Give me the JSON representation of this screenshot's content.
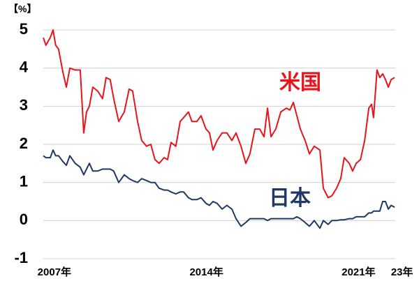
{
  "chart_data": {
    "type": "line",
    "y_unit": "【%】",
    "x": [
      2006.49,
      2006.61,
      2006.81,
      2006.94,
      2007.06,
      2007.19,
      2007.39,
      2007.55,
      2007.71,
      2007.96,
      2008.19,
      2008.35,
      2008.48,
      2008.61,
      2008.77,
      2008.99,
      2009.22,
      2009.38,
      2009.57,
      2009.73,
      2009.96,
      2010.22,
      2010.44,
      2010.6,
      2010.83,
      2011.02,
      2011.24,
      2011.44,
      2011.63,
      2011.82,
      2012.05,
      2012.21,
      2012.37,
      2012.59,
      2012.79,
      2012.95,
      2013.17,
      2013.33,
      2013.56,
      2013.75,
      2013.98,
      2014.14,
      2014.3,
      2014.49,
      2014.72,
      2014.94,
      2015.17,
      2015.36,
      2015.59,
      2015.81,
      2016.0,
      2016.23,
      2016.45,
      2016.65,
      2016.81,
      2016.97,
      2017.19,
      2017.42,
      2017.68,
      2017.84,
      2018.0,
      2018.16,
      2018.32,
      2018.54,
      2018.74,
      2018.96,
      2019.22,
      2019.38,
      2019.6,
      2019.77,
      2019.99,
      2020.18,
      2020.34,
      2020.57,
      2020.73,
      2020.89,
      2021.09,
      2021.28,
      2021.47,
      2021.6,
      2021.69,
      2021.85,
      2021.98,
      2022.11,
      2022.24,
      2022.37,
      2022.5,
      2022.66
    ],
    "series": [
      {
        "name": "米国",
        "color": "#e8141c",
        "values": [
          4.8,
          4.6,
          4.8,
          5.0,
          4.6,
          4.5,
          3.9,
          3.5,
          4.0,
          3.95,
          3.95,
          2.3,
          2.85,
          3.0,
          3.5,
          3.4,
          3.2,
          3.75,
          3.7,
          3.2,
          2.6,
          2.85,
          3.45,
          3.4,
          2.6,
          2.1,
          1.95,
          2.0,
          1.6,
          1.5,
          1.65,
          1.6,
          2.05,
          1.95,
          2.6,
          2.7,
          2.85,
          2.6,
          2.6,
          2.75,
          2.4,
          2.3,
          1.85,
          2.1,
          2.3,
          2.3,
          2.1,
          2.3,
          1.95,
          1.5,
          1.75,
          2.4,
          2.4,
          2.2,
          2.95,
          2.2,
          2.4,
          2.85,
          2.95,
          2.9,
          3.1,
          2.75,
          2.4,
          2.1,
          1.75,
          1.95,
          1.85,
          0.85,
          0.6,
          0.65,
          0.85,
          1.1,
          1.65,
          1.5,
          1.3,
          1.5,
          1.6,
          2.1,
          2.95,
          3.05,
          2.7,
          3.95,
          3.75,
          3.85,
          3.7,
          3.5,
          3.7,
          3.75
        ]
      },
      {
        "name": "日本",
        "color": "#1f3864",
        "values": [
          1.7,
          1.65,
          1.65,
          1.85,
          1.7,
          1.7,
          1.55,
          1.45,
          1.7,
          1.5,
          1.4,
          1.2,
          1.35,
          1.5,
          1.3,
          1.3,
          1.35,
          1.35,
          1.35,
          1.3,
          1.0,
          1.2,
          1.1,
          1.05,
          1.0,
          1.1,
          1.05,
          1.0,
          1.0,
          0.85,
          0.8,
          0.8,
          0.75,
          0.7,
          0.75,
          0.75,
          0.6,
          0.55,
          0.55,
          0.6,
          0.45,
          0.4,
          0.5,
          0.45,
          0.3,
          0.4,
          0.3,
          0.05,
          -0.15,
          -0.05,
          0.05,
          0.05,
          0.05,
          0.05,
          0.0,
          0.05,
          0.05,
          0.05,
          0.05,
          0.05,
          0.05,
          0.1,
          0.05,
          -0.05,
          -0.15,
          0.0,
          -0.2,
          0.0,
          -0.1,
          0.0,
          0.0,
          0.02,
          0.02,
          0.05,
          0.05,
          0.1,
          0.1,
          0.1,
          0.2,
          0.2,
          0.25,
          0.25,
          0.25,
          0.5,
          0.5,
          0.3,
          0.4,
          0.35
        ]
      }
    ],
    "xlim": [
      2006.49,
      2023.3
    ],
    "xticks": [
      {
        "value": 2007,
        "label": "2007年"
      },
      {
        "value": 2014,
        "label": "2014年"
      },
      {
        "value": 2021,
        "label": "2021年"
      },
      {
        "value": 2023,
        "label": "23年"
      }
    ],
    "ylim": [
      -1,
      5
    ],
    "yticks": [
      -1,
      0,
      1,
      2,
      3,
      4,
      5
    ],
    "grid": true
  }
}
